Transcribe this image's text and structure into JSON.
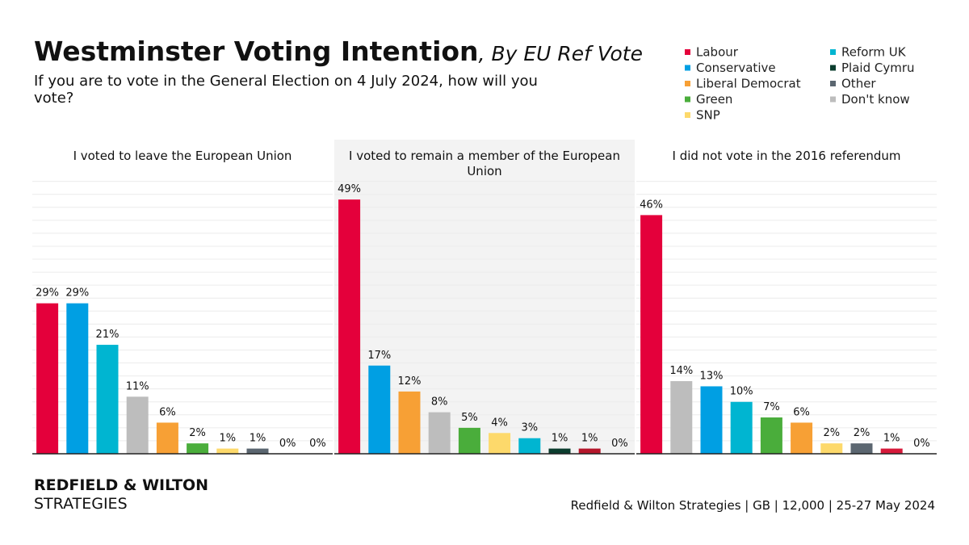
{
  "header": {
    "title": "Westminster Voting Intention",
    "title_suffix": ", By EU Ref Vote",
    "subtitle": "If you are to vote in the General Election on 4 July 2024, how will you vote?",
    "legend": [
      {
        "name": "Labour",
        "color": "#e4003b"
      },
      {
        "name": "Conservative",
        "color": "#009fe3"
      },
      {
        "name": "Liberal Democrat",
        "color": "#f7a035"
      },
      {
        "name": "Green",
        "color": "#4aad3b"
      },
      {
        "name": "SNP",
        "color": "#fdd96b"
      },
      {
        "name": "Reform UK",
        "color": "#00b5d1"
      },
      {
        "name": "Plaid Cymru",
        "color": "#0b3d2e"
      },
      {
        "name": "Other",
        "color": "#5b6670"
      },
      {
        "name": "Don't know",
        "color": "#bdbdbd"
      }
    ]
  },
  "chart_data": [
    {
      "type": "bar",
      "title": "I voted to leave the European Union",
      "categories": [
        null,
        null,
        null,
        null,
        null,
        null,
        null,
        null,
        null,
        null
      ],
      "values": [
        29,
        29,
        21,
        11,
        6,
        2,
        1,
        1,
        0,
        0
      ],
      "value_labels": [
        "29%",
        "29%",
        "21%",
        "11%",
        "6%",
        "2%",
        "1%",
        "1%",
        "0%",
        "0%"
      ],
      "colors": [
        "#e4003b",
        "#009fe3",
        "#00b5d1",
        "#bdbdbd",
        "#f7a035",
        "#4aad3b",
        "#fdd96b",
        "#5b6670",
        "#0b3d2e",
        "#b5162b"
      ],
      "ylim": [
        0,
        54
      ],
      "yticks": [
        0,
        2.5,
        5,
        7.5,
        10,
        12.5,
        15,
        17.5,
        20,
        22.5,
        25,
        27.5,
        30,
        32.5,
        35,
        37.5,
        40,
        42.5,
        45,
        47.5,
        50,
        52.5
      ],
      "grid": true
    },
    {
      "type": "bar",
      "title": "I voted to remain a member of the European Union",
      "categories": [
        null,
        null,
        null,
        null,
        null,
        null,
        null,
        null,
        null,
        null
      ],
      "values": [
        49,
        17,
        12,
        8,
        5,
        4,
        3,
        1,
        1,
        0
      ],
      "value_labels": [
        "49%",
        "17%",
        "12%",
        "8%",
        "5%",
        "4%",
        "3%",
        "1%",
        "1%",
        "0%"
      ],
      "colors": [
        "#e4003b",
        "#009fe3",
        "#f7a035",
        "#bdbdbd",
        "#4aad3b",
        "#fdd96b",
        "#00b5d1",
        "#0b3d2e",
        "#b5162b",
        "#5b6670"
      ],
      "ylim": [
        0,
        54
      ],
      "yticks": [
        0,
        2.5,
        5,
        7.5,
        10,
        12.5,
        15,
        17.5,
        20,
        22.5,
        25,
        27.5,
        30,
        32.5,
        35,
        37.5,
        40,
        42.5,
        45,
        47.5,
        50,
        52.5
      ],
      "grid": true
    },
    {
      "type": "bar",
      "title": "I did not vote in the 2016 referendum",
      "categories": [
        null,
        null,
        null,
        null,
        null,
        null,
        null,
        null,
        null,
        null
      ],
      "values": [
        46,
        14,
        13,
        10,
        7,
        6,
        2,
        2,
        1,
        0
      ],
      "value_labels": [
        "46%",
        "14%",
        "13%",
        "10%",
        "7%",
        "6%",
        "2%",
        "2%",
        "1%",
        "0%"
      ],
      "colors": [
        "#e4003b",
        "#bdbdbd",
        "#009fe3",
        "#00b5d1",
        "#4aad3b",
        "#f7a035",
        "#fdd96b",
        "#5b6670",
        "#d6193a",
        "#0b3d2e"
      ],
      "ylim": [
        0,
        54
      ],
      "yticks": [
        0,
        2.5,
        5,
        7.5,
        10,
        12.5,
        15,
        17.5,
        20,
        22.5,
        25,
        27.5,
        30,
        32.5,
        35,
        37.5,
        40,
        42.5,
        45,
        47.5,
        50,
        52.5
      ],
      "grid": true
    }
  ],
  "footer": {
    "brand": "REDFIELD & WILTON",
    "brand_sub": "STRATEGIES",
    "source": "Redfield & Wilton Strategies | GB | 12,000 | 25-27 May 2024"
  }
}
